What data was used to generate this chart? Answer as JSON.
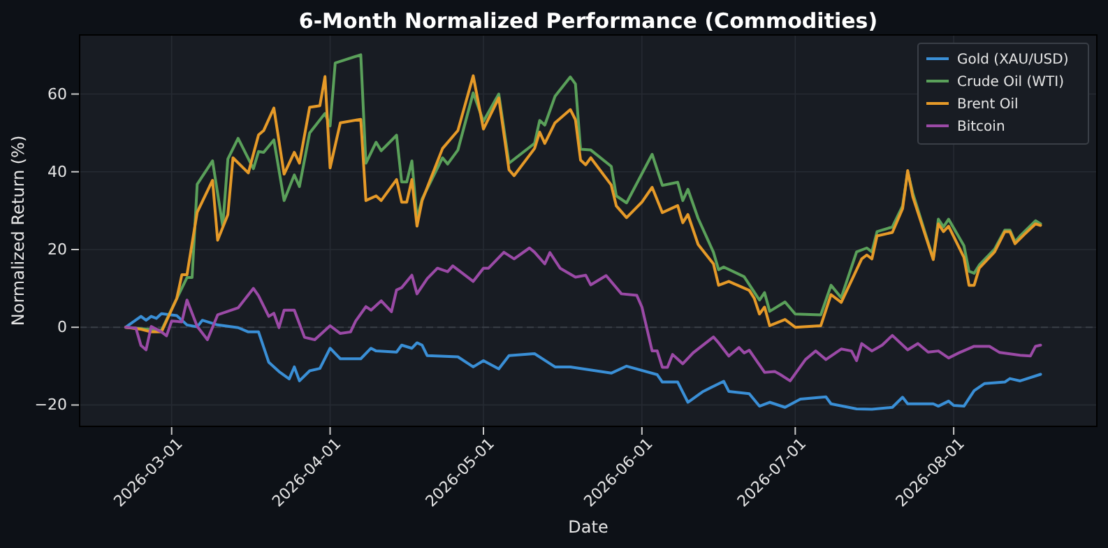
{
  "chart_data": {
    "type": "line",
    "title": "6-Month Normalized Performance (Commodities)",
    "xlabel": "Date",
    "ylabel": "Normalized Return (%)",
    "xlim": [
      "2026-02-11",
      "2026-08-29"
    ],
    "xticks": [
      "2026-03-01",
      "2026-04-01",
      "2026-05-01",
      "2026-06-01",
      "2026-07-01",
      "2026-08-01"
    ],
    "ylim": [
      -25.5,
      75.2
    ],
    "yticks": [
      -20,
      0,
      20,
      40,
      60
    ],
    "grid": true,
    "legend": "top right",
    "line_style": "solid",
    "marker": "none",
    "ref_lines": [
      {
        "axis": "y",
        "value": 0,
        "color": "#3a3f47",
        "line_style": "dashed"
      }
    ],
    "series": [
      {
        "name": "Gold (XAU/USD)",
        "color": "#3a8fd6",
        "x": [
          "2026-02-20",
          "2026-02-23",
          "2026-02-24",
          "2026-02-25",
          "2026-02-26",
          "2026-02-27",
          "2026-03-02",
          "2026-03-04",
          "2026-03-06",
          "2026-03-07",
          "2026-03-10",
          "2026-03-14",
          "2026-03-16",
          "2026-03-18",
          "2026-03-20",
          "2026-03-22",
          "2026-03-24",
          "2026-03-25",
          "2026-03-26",
          "2026-03-28",
          "2026-03-30",
          "2026-04-01",
          "2026-04-03",
          "2026-04-07",
          "2026-04-09",
          "2026-04-10",
          "2026-04-14",
          "2026-04-15",
          "2026-04-17",
          "2026-04-18",
          "2026-04-19",
          "2026-04-20",
          "2026-04-26",
          "2026-04-29",
          "2026-05-01",
          "2026-05-04",
          "2026-05-06",
          "2026-05-11",
          "2026-05-15",
          "2026-05-18",
          "2026-05-26",
          "2026-05-29",
          "2026-06-04",
          "2026-06-05",
          "2026-06-08",
          "2026-06-10",
          "2026-06-13",
          "2026-06-17",
          "2026-06-18",
          "2026-06-22",
          "2026-06-24",
          "2026-06-26",
          "2026-06-29",
          "2026-07-02",
          "2026-07-07",
          "2026-07-08",
          "2026-07-13",
          "2026-07-16",
          "2026-07-20",
          "2026-07-22",
          "2026-07-23",
          "2026-07-28",
          "2026-07-29",
          "2026-07-31",
          "2026-08-01",
          "2026-08-03",
          "2026-08-05",
          "2026-08-07",
          "2026-08-11",
          "2026-08-12",
          "2026-08-14",
          "2026-08-18"
        ],
        "values": [
          0,
          2.8,
          1.8,
          2.8,
          2.3,
          3.5,
          3,
          0.6,
          0.1,
          1.8,
          0.6,
          -0.1,
          -1.2,
          -1.2,
          -9,
          -11.4,
          -13.3,
          -10.2,
          -13.8,
          -11.2,
          -10.6,
          -5.4,
          -8.1,
          -8.1,
          -5.4,
          -6.1,
          -6.4,
          -4.6,
          -5.4,
          -4,
          -4.6,
          -7.3,
          -7.6,
          -10.2,
          -8.6,
          -10.7,
          -7.3,
          -6.8,
          -10.2,
          -10.2,
          -11.8,
          -10,
          -12.2,
          -14.1,
          -14.1,
          -19.3,
          -16.5,
          -13.9,
          -16.5,
          -17.1,
          -20.3,
          -19.3,
          -20.6,
          -18.5,
          -17.9,
          -19.7,
          -21,
          -21.1,
          -20.6,
          -18,
          -19.7,
          -19.7,
          -20.3,
          -19,
          -20.1,
          -20.3,
          -16.3,
          -14.5,
          -14.1,
          -13.2,
          -13.8,
          -12.1
        ]
      },
      {
        "name": "Crude Oil (WTI)",
        "color": "#5aa05a",
        "x": [
          "2026-02-20",
          "2026-02-27",
          "2026-03-02",
          "2026-03-04",
          "2026-03-05",
          "2026-03-06",
          "2026-03-09",
          "2026-03-11",
          "2026-03-12",
          "2026-03-14",
          "2026-03-17",
          "2026-03-18",
          "2026-03-19",
          "2026-03-21",
          "2026-03-23",
          "2026-03-25",
          "2026-03-26",
          "2026-03-28",
          "2026-03-31",
          "2026-04-01",
          "2026-04-02",
          "2026-04-07",
          "2026-04-08",
          "2026-04-10",
          "2026-04-11",
          "2026-04-14",
          "2026-04-15",
          "2026-04-16",
          "2026-04-17",
          "2026-04-18",
          "2026-04-19",
          "2026-04-23",
          "2026-04-24",
          "2026-04-26",
          "2026-04-29",
          "2026-05-01",
          "2026-05-04",
          "2026-05-06",
          "2026-05-11",
          "2026-05-12",
          "2026-05-13",
          "2026-05-15",
          "2026-05-18",
          "2026-05-19",
          "2026-05-20",
          "2026-05-22",
          "2026-05-26",
          "2026-05-27",
          "2026-05-29",
          "2026-06-03",
          "2026-06-05",
          "2026-06-08",
          "2026-06-09",
          "2026-06-10",
          "2026-06-12",
          "2026-06-15",
          "2026-06-16",
          "2026-06-17",
          "2026-06-21",
          "2026-06-23",
          "2026-06-24",
          "2026-06-25",
          "2026-06-26",
          "2026-06-29",
          "2026-07-01",
          "2026-07-06",
          "2026-07-08",
          "2026-07-10",
          "2026-07-13",
          "2026-07-15",
          "2026-07-16",
          "2026-07-17",
          "2026-07-20",
          "2026-07-22",
          "2026-07-23",
          "2026-07-24",
          "2026-07-28",
          "2026-07-29",
          "2026-07-30",
          "2026-07-31",
          "2026-08-03",
          "2026-08-04",
          "2026-08-05",
          "2026-08-06",
          "2026-08-09",
          "2026-08-11",
          "2026-08-12",
          "2026-08-13",
          "2026-08-14",
          "2026-08-17",
          "2026-08-18"
        ],
        "values": [
          0,
          -0.8,
          7.4,
          12.8,
          12.8,
          36.8,
          42.8,
          26,
          43.3,
          48.6,
          40.8,
          45.2,
          45,
          48.2,
          32.6,
          39.2,
          36.2,
          50,
          55,
          51.8,
          68,
          70.1,
          42.2,
          47.6,
          45.4,
          49.4,
          37.4,
          37.4,
          42.8,
          27.9,
          33,
          43.6,
          42,
          45.6,
          60.3,
          53,
          60,
          42.2,
          47.3,
          53.2,
          52,
          59.4,
          64.4,
          62.6,
          45.8,
          45.6,
          41.4,
          33.8,
          32,
          44.5,
          36.5,
          37.3,
          32.6,
          35.5,
          28,
          19.3,
          14.8,
          15.5,
          13,
          9,
          7,
          8.9,
          4.1,
          6.5,
          3.4,
          3.2,
          10.8,
          7.6,
          19.4,
          20.4,
          19.4,
          24.6,
          25.8,
          31.2,
          40,
          34.5,
          17.6,
          27.8,
          25.8,
          27.8,
          21,
          14.4,
          13.9,
          16,
          20.1,
          25,
          25,
          22,
          23.5,
          27.4,
          26.6
        ]
      },
      {
        "name": "Brent Oil",
        "color": "#e69a28",
        "x": [
          "2026-02-20",
          "2026-02-23",
          "2026-02-25",
          "2026-02-27",
          "2026-03-02",
          "2026-03-03",
          "2026-03-04",
          "2026-03-06",
          "2026-03-09",
          "2026-03-10",
          "2026-03-12",
          "2026-03-13",
          "2026-03-16",
          "2026-03-18",
          "2026-03-19",
          "2026-03-21",
          "2026-03-23",
          "2026-03-25",
          "2026-03-26",
          "2026-03-28",
          "2026-03-30",
          "2026-03-31",
          "2026-04-01",
          "2026-04-03",
          "2026-04-07",
          "2026-04-08",
          "2026-04-10",
          "2026-04-11",
          "2026-04-14",
          "2026-04-15",
          "2026-04-16",
          "2026-04-17",
          "2026-04-18",
          "2026-04-19",
          "2026-04-23",
          "2026-04-26",
          "2026-04-29",
          "2026-05-01",
          "2026-05-04",
          "2026-05-06",
          "2026-05-07",
          "2026-05-11",
          "2026-05-12",
          "2026-05-13",
          "2026-05-15",
          "2026-05-18",
          "2026-05-19",
          "2026-05-20",
          "2026-05-21",
          "2026-05-22",
          "2026-05-26",
          "2026-05-27",
          "2026-05-29",
          "2026-06-01",
          "2026-06-03",
          "2026-06-05",
          "2026-06-08",
          "2026-06-09",
          "2026-06-10",
          "2026-06-12",
          "2026-06-15",
          "2026-06-16",
          "2026-06-18",
          "2026-06-22",
          "2026-06-23",
          "2026-06-24",
          "2026-06-25",
          "2026-06-26",
          "2026-06-29",
          "2026-07-01",
          "2026-07-06",
          "2026-07-08",
          "2026-07-10",
          "2026-07-14",
          "2026-07-15",
          "2026-07-16",
          "2026-07-17",
          "2026-07-20",
          "2026-07-22",
          "2026-07-23",
          "2026-07-24",
          "2026-07-28",
          "2026-07-29",
          "2026-07-30",
          "2026-07-31",
          "2026-08-03",
          "2026-08-04",
          "2026-08-05",
          "2026-08-06",
          "2026-08-09",
          "2026-08-11",
          "2026-08-12",
          "2026-08-13",
          "2026-08-15",
          "2026-08-17",
          "2026-08-18"
        ],
        "values": [
          0,
          -0.5,
          -1.2,
          -1.2,
          7.4,
          13.5,
          13.5,
          29.6,
          37.8,
          22.4,
          29,
          43.6,
          39.7,
          49.5,
          50.6,
          56.4,
          39.4,
          45,
          42.2,
          56.6,
          57,
          64.5,
          41,
          52.6,
          53.5,
          32.6,
          33.8,
          32.6,
          38,
          32.2,
          32.2,
          38,
          26,
          32.6,
          46,
          50.6,
          64.7,
          51,
          59,
          40.5,
          39,
          46,
          50.2,
          47.3,
          52.6,
          56,
          53.4,
          43,
          41.8,
          43.6,
          36.6,
          31.2,
          28.2,
          32.2,
          36,
          29.5,
          31.3,
          26.9,
          29,
          21.3,
          16.3,
          10.8,
          11.8,
          9.5,
          7.4,
          3.4,
          5.2,
          0.4,
          2,
          0,
          0.4,
          8.4,
          6.4,
          17.6,
          18.6,
          17.6,
          23.5,
          24.4,
          30.5,
          40.3,
          33.6,
          17.4,
          26.6,
          24.6,
          26,
          18,
          10.8,
          10.8,
          15.2,
          19.4,
          24.6,
          24.6,
          21.5,
          24.1,
          26.6,
          26.2
        ]
      },
      {
        "name": "Bitcoin",
        "color": "#9b4aa6",
        "x": [
          "2026-02-20",
          "2026-02-22",
          "2026-02-23",
          "2026-02-24",
          "2026-02-25",
          "2026-02-27",
          "2026-02-28",
          "2026-03-01",
          "2026-03-03",
          "2026-03-04",
          "2026-03-06",
          "2026-03-08",
          "2026-03-10",
          "2026-03-14",
          "2026-03-17",
          "2026-03-18",
          "2026-03-20",
          "2026-03-21",
          "2026-03-22",
          "2026-03-23",
          "2026-03-25",
          "2026-03-27",
          "2026-03-29",
          "2026-04-01",
          "2026-04-03",
          "2026-04-05",
          "2026-04-06",
          "2026-04-08",
          "2026-04-09",
          "2026-04-11",
          "2026-04-13",
          "2026-04-14",
          "2026-04-15",
          "2026-04-17",
          "2026-04-18",
          "2026-04-20",
          "2026-04-22",
          "2026-04-24",
          "2026-04-25",
          "2026-04-29",
          "2026-05-01",
          "2026-05-02",
          "2026-05-05",
          "2026-05-07",
          "2026-05-10",
          "2026-05-11",
          "2026-05-13",
          "2026-05-14",
          "2026-05-16",
          "2026-05-19",
          "2026-05-21",
          "2026-05-22",
          "2026-05-25",
          "2026-05-28",
          "2026-05-31",
          "2026-06-01",
          "2026-06-03",
          "2026-06-04",
          "2026-06-05",
          "2026-06-06",
          "2026-06-07",
          "2026-06-09",
          "2026-06-11",
          "2026-06-15",
          "2026-06-16",
          "2026-06-18",
          "2026-06-20",
          "2026-06-21",
          "2026-06-22",
          "2026-06-25",
          "2026-06-27",
          "2026-06-28",
          "2026-06-30",
          "2026-07-03",
          "2026-07-05",
          "2026-07-07",
          "2026-07-10",
          "2026-07-12",
          "2026-07-13",
          "2026-07-14",
          "2026-07-16",
          "2026-07-18",
          "2026-07-20",
          "2026-07-23",
          "2026-07-25",
          "2026-07-27",
          "2026-07-29",
          "2026-07-31",
          "2026-08-02",
          "2026-08-05",
          "2026-08-08",
          "2026-08-10",
          "2026-08-14",
          "2026-08-16",
          "2026-08-17",
          "2026-08-18"
        ],
        "values": [
          0,
          -0.2,
          -4.7,
          -5.8,
          0.2,
          -1.2,
          -2.2,
          1.6,
          1.4,
          7,
          0.2,
          -3.2,
          3.2,
          5,
          10,
          8.1,
          2.8,
          3.6,
          -0.1,
          4.4,
          4.4,
          -2.6,
          -3.2,
          0.4,
          -1.6,
          -1.2,
          1.6,
          5.3,
          4.4,
          6.8,
          4,
          9.6,
          10.2,
          13.4,
          8.6,
          12.5,
          15.2,
          14.3,
          15.8,
          11.8,
          15.2,
          15.2,
          19.3,
          17.6,
          20.4,
          19.3,
          16.3,
          19.2,
          15.2,
          12.9,
          13.4,
          10.9,
          13.3,
          8.6,
          8.2,
          5.2,
          -6.1,
          -6.1,
          -10.3,
          -10.3,
          -7,
          -9.4,
          -6.6,
          -2.5,
          -4,
          -7.4,
          -5.2,
          -6.6,
          -5.9,
          -11.6,
          -11.4,
          -12.1,
          -13.8,
          -8.3,
          -6.1,
          -8.3,
          -5.6,
          -6.1,
          -8.6,
          -4.2,
          -6.1,
          -4.6,
          -2.1,
          -5.8,
          -4.2,
          -6.4,
          -6.1,
          -7.9,
          -6.6,
          -4.9,
          -4.9,
          -6.5,
          -7.2,
          -7.4,
          -4.9,
          -4.6
        ]
      }
    ]
  }
}
